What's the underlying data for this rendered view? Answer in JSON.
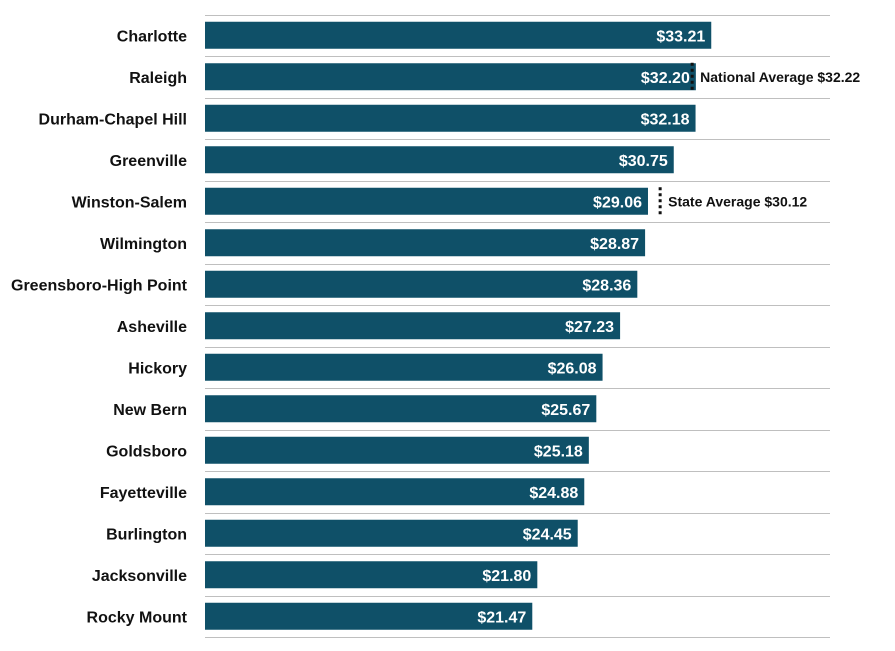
{
  "chart_data": {
    "type": "bar",
    "orientation": "horizontal",
    "categories": [
      "Charlotte",
      "Raleigh",
      "Durham-Chapel Hill",
      "Greenville",
      "Winston-Salem",
      "Wilmington",
      "Greensboro-High Point",
      "Asheville",
      "Hickory",
      "New Bern",
      "Goldsboro",
      "Fayetteville",
      "Burlington",
      "Jacksonville",
      "Rocky Mount"
    ],
    "values": [
      33.21,
      32.2,
      32.18,
      30.75,
      29.06,
      28.87,
      28.36,
      27.23,
      26.08,
      25.67,
      25.18,
      24.88,
      24.45,
      21.8,
      21.47
    ],
    "value_labels": [
      "$33.21",
      "$32.20",
      "$32.18",
      "$30.75",
      "$29.06",
      "$28.87",
      "$28.36",
      "$27.23",
      "$26.08",
      "$25.67",
      "$25.18",
      "$24.88",
      "$24.45",
      "$21.80",
      "$21.47"
    ],
    "xlim": [
      0,
      41
    ],
    "grid": true,
    "bar_color": "#0f5068",
    "reference_lines": [
      {
        "label": "National Average $32.22",
        "value": 32.22,
        "row": 1
      },
      {
        "label": "State Average $30.12",
        "value": 30.12,
        "row": 4
      }
    ]
  }
}
